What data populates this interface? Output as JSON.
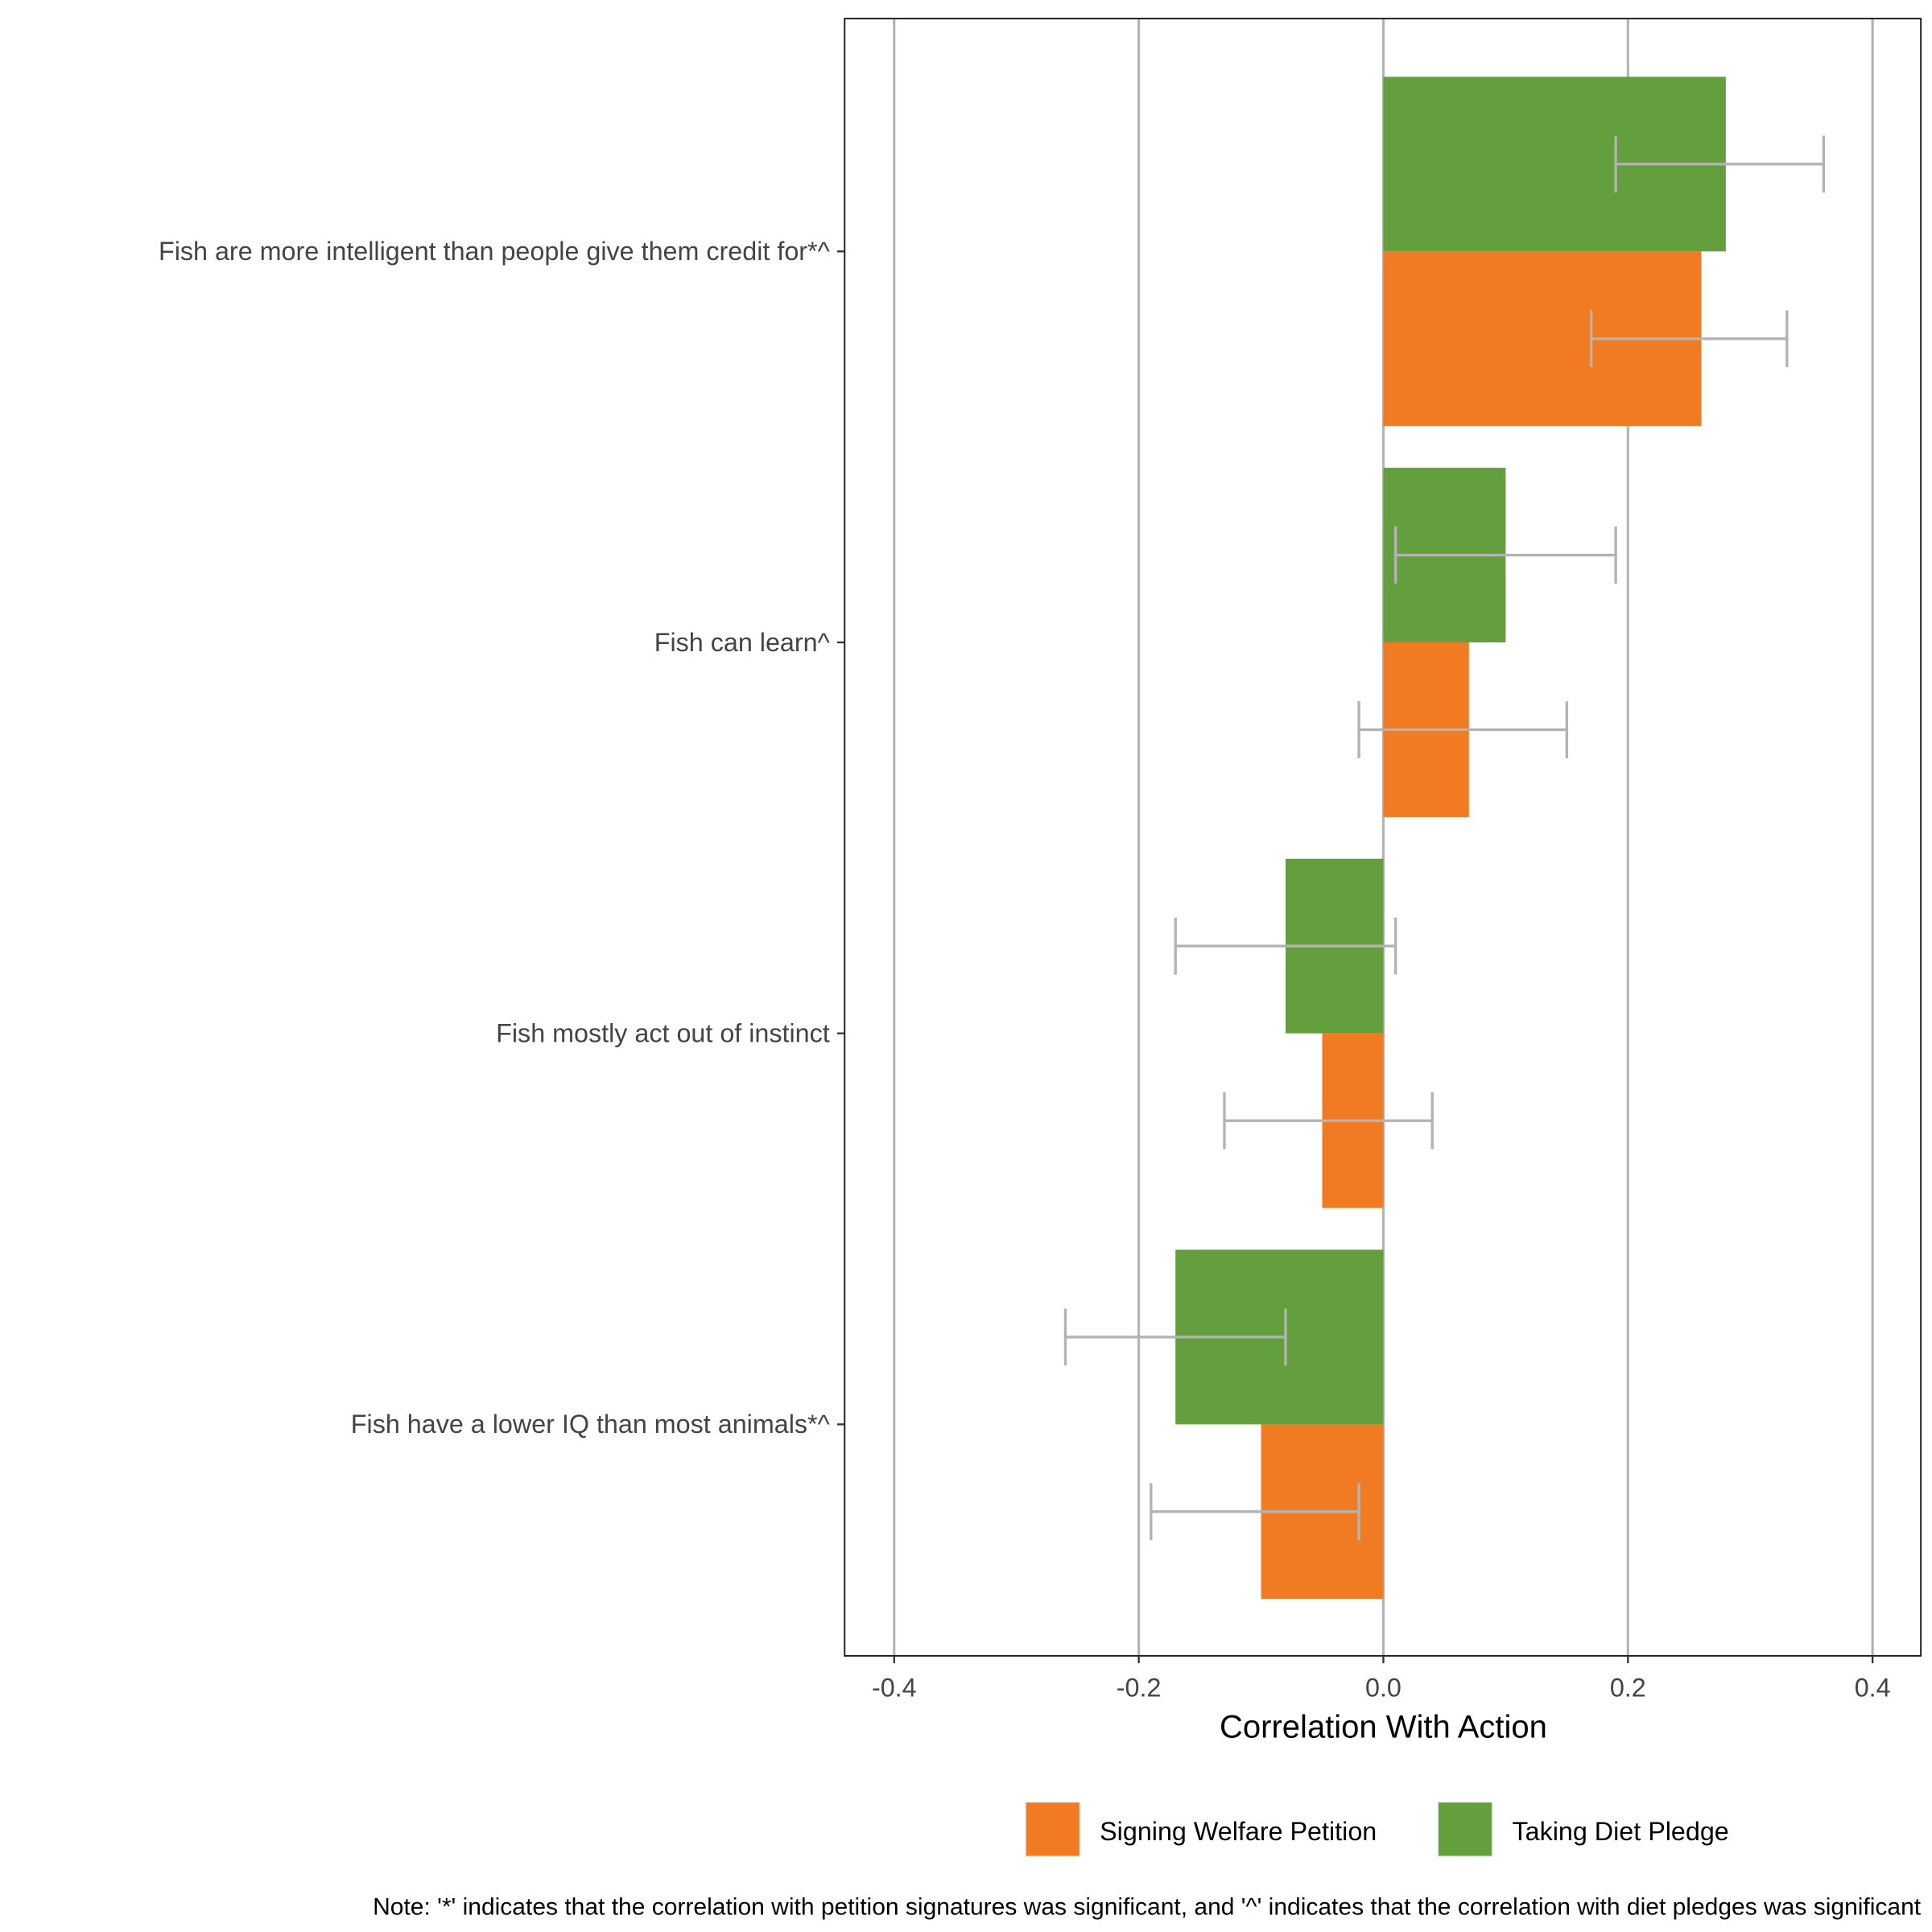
{
  "chart_data": {
    "type": "bar",
    "orientation": "horizontal",
    "title": "",
    "xlabel": "Correlation With Action",
    "ylabel": "",
    "xlim": [
      -0.44,
      0.44
    ],
    "xticks": [
      "-0.4",
      "-0.2",
      "0.0",
      "0.2",
      "0.4"
    ],
    "xtick_values": [
      -0.4,
      -0.2,
      0.0,
      0.2,
      0.4
    ],
    "grid": true,
    "categories": [
      "Fish are more intelligent than people give them credit for*^",
      "Fish can learn^",
      "Fish mostly act out of instinct",
      "Fish have a lower IQ than most animals*^"
    ],
    "series": [
      {
        "name": "Signing Welfare Petition",
        "color": "#F07B22",
        "values": [
          0.26,
          0.07,
          -0.05,
          -0.1
        ],
        "ci_low": [
          0.17,
          -0.02,
          -0.13,
          -0.19
        ],
        "ci_high": [
          0.33,
          0.15,
          0.04,
          -0.02
        ]
      },
      {
        "name": "Taking Diet Pledge",
        "color": "#639F3D",
        "values": [
          0.28,
          0.1,
          -0.08,
          -0.17
        ],
        "ci_low": [
          0.19,
          0.01,
          -0.17,
          -0.26
        ],
        "ci_high": [
          0.36,
          0.19,
          0.01,
          -0.08
        ]
      }
    ],
    "legend_position": "bottom",
    "note": "Note: '*' indicates that the correlation with petition signatures was significant, and '^' indicates that the correlation with diet pledges was significant"
  }
}
